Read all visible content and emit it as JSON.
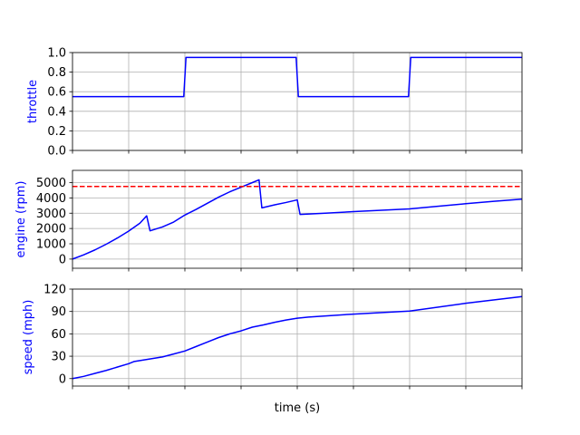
{
  "chart_data": [
    {
      "type": "line",
      "title": "",
      "xlabel": "",
      "ylabel": "throttle",
      "ylabel_color": "#0000ff",
      "grid": true,
      "xlim": [
        0,
        80
      ],
      "xticks": [
        0,
        10,
        20,
        30,
        40,
        50,
        60,
        70,
        80
      ],
      "show_xtick_labels": false,
      "ylim": [
        0,
        1
      ],
      "yticks": [
        0,
        0.2,
        0.4,
        0.6,
        0.8,
        1.0
      ],
      "ytick_labels": [
        "0.0",
        "0.2",
        "0.4",
        "0.6",
        "0.8",
        "1.0"
      ],
      "series": [
        {
          "color": "#0000ff",
          "style": "solid",
          "x": [
            0,
            19.8,
            20.2,
            39.8,
            40.2,
            59.8,
            60.2,
            80
          ],
          "y": [
            0.55,
            0.55,
            0.95,
            0.95,
            0.55,
            0.55,
            0.95,
            0.95
          ]
        }
      ]
    },
    {
      "type": "line",
      "title": "",
      "xlabel": "",
      "ylabel": "engine (rpm)",
      "ylabel_color": "#0000ff",
      "grid": true,
      "xlim": [
        0,
        80
      ],
      "xticks": [
        0,
        10,
        20,
        30,
        40,
        50,
        60,
        70,
        80
      ],
      "show_xtick_labels": false,
      "ylim": [
        -600,
        5800
      ],
      "yticks": [
        0,
        1000,
        2000,
        3000,
        4000,
        5000
      ],
      "ytick_labels": [
        "0",
        "1000",
        "2000",
        "3000",
        "4000",
        "5000"
      ],
      "series": [
        {
          "color": "#0000ff",
          "style": "solid",
          "x": [
            0,
            2,
            4,
            6,
            8,
            10,
            12,
            13.2,
            13.8,
            16,
            18,
            20,
            22,
            24,
            26,
            28,
            30,
            32,
            33.2,
            33.7,
            36,
            38,
            40,
            40.5,
            45,
            50,
            60,
            65,
            70,
            75,
            80
          ],
          "y": [
            0,
            280,
            600,
            970,
            1380,
            1830,
            2350,
            2830,
            1850,
            2100,
            2420,
            2880,
            3250,
            3650,
            4050,
            4400,
            4700,
            5000,
            5180,
            3350,
            3550,
            3700,
            3870,
            2920,
            3000,
            3100,
            3280,
            3450,
            3620,
            3780,
            3920
          ]
        },
        {
          "color": "#ff0000",
          "style": "dashed",
          "x": [
            0,
            80
          ],
          "y": [
            4750,
            4750
          ]
        }
      ]
    },
    {
      "type": "line",
      "title": "",
      "xlabel": "time (s)",
      "ylabel": "speed (mph)",
      "ylabel_color": "#0000ff",
      "grid": true,
      "xlim": [
        0,
        80
      ],
      "xticks": [
        0,
        10,
        20,
        30,
        40,
        50,
        60,
        70,
        80
      ],
      "show_xtick_labels": false,
      "ylim": [
        -10,
        120
      ],
      "yticks": [
        0,
        30,
        60,
        90,
        120
      ],
      "ytick_labels": [
        "0",
        "30",
        "60",
        "90",
        "120"
      ],
      "series": [
        {
          "color": "#0000ff",
          "style": "solid",
          "x": [
            0,
            2,
            4,
            6,
            8,
            10,
            11,
            13.5,
            16,
            18,
            20,
            22,
            24,
            26,
            28,
            30,
            32,
            34,
            36,
            38,
            40,
            42,
            50,
            60,
            70,
            80
          ],
          "y": [
            0,
            3,
            7,
            11,
            15.5,
            20,
            23,
            26,
            29,
            33,
            37,
            43,
            49,
            55,
            60,
            64,
            69,
            72,
            75.5,
            78.5,
            81,
            82.5,
            86.5,
            90.5,
            101,
            110
          ]
        }
      ]
    }
  ]
}
